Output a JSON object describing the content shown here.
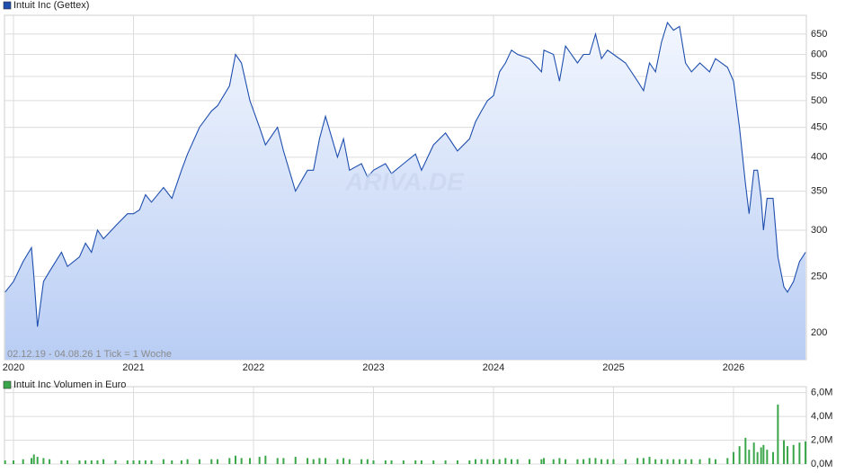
{
  "chart_data": [
    {
      "type": "area",
      "scale": "log",
      "series": [
        {
          "name": "Intuit Inc (Gettex)",
          "color": "#1f4fae",
          "values": [
            235,
            245,
            265,
            280,
            250,
            205,
            245,
            255,
            275,
            260,
            270,
            285,
            275,
            300,
            290,
            305,
            320,
            320,
            325,
            345,
            335,
            355,
            340,
            380,
            405,
            450,
            480,
            490,
            530,
            600,
            580,
            500,
            450,
            420,
            450,
            410,
            350,
            380,
            380,
            430,
            470,
            400,
            430,
            380,
            390,
            370,
            380,
            390,
            375,
            390,
            405,
            380,
            420,
            440,
            410,
            430,
            460,
            480,
            500,
            510,
            560,
            580,
            610,
            600,
            590,
            560,
            610,
            600,
            540,
            620,
            580,
            600,
            600,
            650,
            590,
            610,
            600,
            580,
            540,
            520,
            580,
            560,
            630,
            680,
            660,
            670,
            580,
            560,
            580,
            560,
            590,
            570,
            540,
            450,
            360,
            320,
            380,
            380,
            340,
            300,
            340,
            340,
            270,
            240,
            235,
            245,
            265,
            275
          ]
        }
      ],
      "x": [
        2019.93,
        2020,
        2020.08,
        2020.15,
        2020.17,
        2020.2,
        2020.25,
        2020.3,
        2020.4,
        2020.45,
        2020.55,
        2020.6,
        2020.65,
        2020.7,
        2020.75,
        2020.85,
        2020.95,
        2021,
        2021.05,
        2021.1,
        2021.15,
        2021.25,
        2021.32,
        2021.4,
        2021.45,
        2021.55,
        2021.65,
        2021.7,
        2021.8,
        2021.85,
        2021.9,
        2021.97,
        2022.05,
        2022.1,
        2022.2,
        2022.25,
        2022.35,
        2022.45,
        2022.5,
        2022.55,
        2022.6,
        2022.7,
        2022.75,
        2022.8,
        2022.9,
        2022.95,
        2023,
        2023.1,
        2023.15,
        2023.25,
        2023.35,
        2023.4,
        2023.5,
        2023.6,
        2023.7,
        2023.8,
        2023.85,
        2023.9,
        2023.95,
        2024,
        2024.05,
        2024.1,
        2024.15,
        2024.2,
        2024.3,
        2024.4,
        2024.42,
        2024.5,
        2024.55,
        2024.6,
        2024.7,
        2024.75,
        2024.8,
        2024.85,
        2024.9,
        2024.95,
        2025,
        2025.1,
        2025.2,
        2025.25,
        2025.3,
        2025.35,
        2025.4,
        2025.45,
        2025.5,
        2025.55,
        2025.6,
        2025.65,
        2025.72,
        2025.8,
        2025.85,
        2025.95,
        2026,
        2026.05,
        2026.1,
        2026.13,
        2026.17,
        2026.2,
        2026.23,
        2026.25,
        2026.28,
        2026.33,
        2026.37,
        2026.42,
        2026.45,
        2026.5,
        2026.55,
        2026.6
      ],
      "xlim": [
        2019.925,
        2026.607
      ],
      "xticks": [
        2020,
        2021,
        2022,
        2023,
        2024,
        2025,
        2026
      ],
      "ylim": [
        180,
        700
      ],
      "yticks": [
        200,
        250,
        300,
        350,
        400,
        450,
        500,
        550,
        600,
        650
      ],
      "grid": true,
      "annotation": "02.12.19 - 04.08.26    1 Tick = 1 Woche",
      "watermark": "ARIVA.DE"
    },
    {
      "type": "bar",
      "series": [
        {
          "name": "Intuit Inc Volumen in Euro",
          "color": "#3aa64a",
          "values": [
            0.3,
            0.3,
            0.4,
            0.5,
            0.8,
            0.6,
            0.5,
            0.4,
            0.3,
            0.3,
            0.3,
            0.3,
            0.3,
            0.3,
            0.4,
            0.3,
            0.3,
            0.3,
            0.3,
            0.3,
            0.3,
            0.4,
            0.3,
            0.3,
            0.4,
            0.4,
            0.4,
            0.4,
            0.5,
            0.7,
            0.5,
            0.5,
            0.6,
            0.7,
            0.5,
            0.5,
            0.6,
            0.5,
            0.4,
            0.5,
            0.5,
            0.4,
            0.5,
            0.4,
            0.4,
            0.4,
            0.3,
            0.3,
            0.3,
            0.3,
            0.3,
            0.3,
            0.3,
            0.3,
            0.3,
            0.3,
            0.4,
            0.4,
            0.4,
            0.4,
            0.4,
            0.5,
            0.4,
            0.4,
            0.4,
            0.4,
            0.5,
            0.4,
            0.5,
            0.4,
            0.4,
            0.4,
            0.5,
            0.5,
            0.4,
            0.4,
            0.4,
            0.4,
            0.5,
            0.5,
            0.6,
            0.4,
            0.4,
            0.4,
            0.4,
            0.4,
            0.4,
            0.4,
            0.4,
            0.5,
            0.4,
            0.5,
            1.0,
            1.5,
            2.2,
            1.2,
            1.8,
            1.0,
            1.4,
            1.6,
            1.2,
            1.0,
            5.0,
            2.0,
            1.5,
            1.6,
            1.8,
            1.9
          ]
        }
      ],
      "x": [
        2019.93,
        2020,
        2020.08,
        2020.15,
        2020.17,
        2020.2,
        2020.25,
        2020.3,
        2020.4,
        2020.45,
        2020.55,
        2020.6,
        2020.65,
        2020.7,
        2020.75,
        2020.85,
        2020.95,
        2021,
        2021.05,
        2021.1,
        2021.15,
        2021.25,
        2021.32,
        2021.4,
        2021.45,
        2021.55,
        2021.65,
        2021.7,
        2021.8,
        2021.85,
        2021.9,
        2021.97,
        2022.05,
        2022.1,
        2022.2,
        2022.25,
        2022.35,
        2022.45,
        2022.5,
        2022.55,
        2022.6,
        2022.7,
        2022.75,
        2022.8,
        2022.9,
        2022.95,
        2023,
        2023.1,
        2023.15,
        2023.25,
        2023.35,
        2023.4,
        2023.5,
        2023.6,
        2023.7,
        2023.8,
        2023.85,
        2023.9,
        2023.95,
        2024,
        2024.05,
        2024.1,
        2024.15,
        2024.2,
        2024.3,
        2024.4,
        2024.42,
        2024.5,
        2024.55,
        2024.6,
        2024.7,
        2024.75,
        2024.8,
        2024.85,
        2024.9,
        2024.95,
        2025,
        2025.1,
        2025.2,
        2025.25,
        2025.3,
        2025.35,
        2025.4,
        2025.45,
        2025.5,
        2025.55,
        2025.6,
        2025.65,
        2025.72,
        2025.8,
        2025.85,
        2025.95,
        2026,
        2026.05,
        2026.1,
        2026.13,
        2026.17,
        2026.2,
        2026.23,
        2026.25,
        2026.28,
        2026.33,
        2026.37,
        2026.42,
        2026.45,
        2026.5,
        2026.55,
        2026.6
      ],
      "xlim": [
        2019.925,
        2026.607
      ],
      "xticks": [
        2020,
        2021,
        2022,
        2023,
        2024,
        2025,
        2026
      ],
      "ylim": [
        0,
        6.5
      ],
      "yticks": [
        {
          "value": 0,
          "label": "0,0M"
        },
        {
          "value": 2,
          "label": "2,0M"
        },
        {
          "value": 4,
          "label": "4,0M"
        },
        {
          "value": 6,
          "label": "6,0M"
        }
      ],
      "grid": true
    }
  ]
}
